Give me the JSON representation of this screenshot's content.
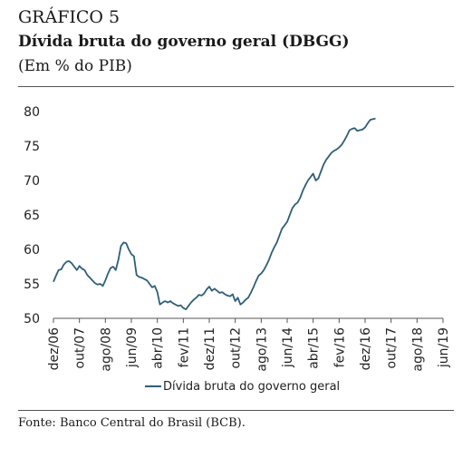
{
  "header": {
    "figure_label": "GRÁFICO 5",
    "title": "Dívida bruta do governo geral (DBGG)",
    "subtitle": "(Em % do PIB)"
  },
  "footer": {
    "source": "Fonte: Banco Central do Brasil (BCB)."
  },
  "colors": {
    "series": "#2e5f79",
    "axis": "#555555"
  },
  "chart_data": {
    "type": "line",
    "ylim": [
      50,
      80
    ],
    "yticks": [
      50,
      55,
      60,
      65,
      70,
      75,
      80
    ],
    "xlim": [
      0,
      150
    ],
    "xticks": [
      {
        "label": "dez/06",
        "x": 0
      },
      {
        "label": "out/07",
        "x": 10
      },
      {
        "label": "ago/08",
        "x": 20
      },
      {
        "label": "jun/09",
        "x": 30
      },
      {
        "label": "abr/10",
        "x": 40
      },
      {
        "label": "fev/11",
        "x": 50
      },
      {
        "label": "dez/11",
        "x": 60
      },
      {
        "label": "out/12",
        "x": 70
      },
      {
        "label": "ago/13",
        "x": 80
      },
      {
        "label": "jun/14",
        "x": 90
      },
      {
        "label": "abr/15",
        "x": 100
      },
      {
        "label": "fev/16",
        "x": 110
      },
      {
        "label": "dez/16",
        "x": 120
      },
      {
        "label": "out/17",
        "x": 130
      },
      {
        "label": "ago/18",
        "x": 140
      },
      {
        "label": "jun/19",
        "x": 150
      }
    ],
    "legend": "bottom-center",
    "series": [
      {
        "name": "Dívida bruta do governo geral",
        "points": [
          [
            0,
            55.3
          ],
          [
            1,
            56.2
          ],
          [
            2,
            57.0
          ],
          [
            3,
            57.1
          ],
          [
            4,
            57.8
          ],
          [
            5,
            58.2
          ],
          [
            6,
            58.3
          ],
          [
            7,
            58.0
          ],
          [
            8,
            57.5
          ],
          [
            9,
            57.0
          ],
          [
            10,
            57.6
          ],
          [
            11,
            57.2
          ],
          [
            12,
            57.0
          ],
          [
            13,
            56.3
          ],
          [
            14,
            55.9
          ],
          [
            15,
            55.5
          ],
          [
            16,
            55.1
          ],
          [
            17,
            54.9
          ],
          [
            18,
            55.0
          ],
          [
            19,
            54.7
          ],
          [
            20,
            55.5
          ],
          [
            21,
            56.5
          ],
          [
            22,
            57.3
          ],
          [
            23,
            57.5
          ],
          [
            24,
            57.0
          ],
          [
            25,
            58.5
          ],
          [
            26,
            60.5
          ],
          [
            27,
            61.0
          ],
          [
            28,
            60.9
          ],
          [
            29,
            60.0
          ],
          [
            30,
            59.3
          ],
          [
            31,
            59.0
          ],
          [
            32,
            56.3
          ],
          [
            33,
            56.0
          ],
          [
            34,
            55.9
          ],
          [
            35,
            55.7
          ],
          [
            36,
            55.5
          ],
          [
            37,
            55.0
          ],
          [
            38,
            54.5
          ],
          [
            39,
            54.7
          ],
          [
            40,
            53.8
          ],
          [
            41,
            52.0
          ],
          [
            42,
            52.3
          ],
          [
            43,
            52.5
          ],
          [
            44,
            52.3
          ],
          [
            45,
            52.5
          ],
          [
            46,
            52.2
          ],
          [
            47,
            52.0
          ],
          [
            48,
            51.8
          ],
          [
            49,
            51.9
          ],
          [
            50,
            51.5
          ],
          [
            51,
            51.3
          ],
          [
            52,
            51.8
          ],
          [
            53,
            52.3
          ],
          [
            54,
            52.7
          ],
          [
            55,
            53.0
          ],
          [
            56,
            53.4
          ],
          [
            57,
            53.3
          ],
          [
            58,
            53.6
          ],
          [
            59,
            54.2
          ],
          [
            60,
            54.6
          ],
          [
            61,
            54.0
          ],
          [
            62,
            54.3
          ],
          [
            63,
            54.0
          ],
          [
            64,
            53.7
          ],
          [
            65,
            53.8
          ],
          [
            66,
            53.5
          ],
          [
            67,
            53.3
          ],
          [
            68,
            53.2
          ],
          [
            69,
            53.5
          ],
          [
            70,
            52.5
          ],
          [
            71,
            53.0
          ],
          [
            72,
            52.0
          ],
          [
            73,
            52.3
          ],
          [
            74,
            52.7
          ],
          [
            75,
            53.0
          ],
          [
            76,
            53.7
          ],
          [
            77,
            54.5
          ],
          [
            78,
            55.4
          ],
          [
            79,
            56.2
          ],
          [
            80,
            56.5
          ],
          [
            81,
            57.0
          ],
          [
            82,
            57.7
          ],
          [
            83,
            58.5
          ],
          [
            84,
            59.5
          ],
          [
            85,
            60.3
          ],
          [
            86,
            61.0
          ],
          [
            87,
            62.0
          ],
          [
            88,
            63.0
          ],
          [
            89,
            63.5
          ],
          [
            90,
            64.0
          ],
          [
            91,
            65.0
          ],
          [
            92,
            66.0
          ],
          [
            93,
            66.5
          ],
          [
            94,
            66.8
          ],
          [
            95,
            67.5
          ],
          [
            96,
            68.5
          ],
          [
            97,
            69.3
          ],
          [
            98,
            70.0
          ],
          [
            99,
            70.5
          ],
          [
            100,
            71.0
          ],
          [
            101,
            70.0
          ],
          [
            102,
            70.3
          ],
          [
            103,
            71.3
          ],
          [
            104,
            72.3
          ],
          [
            105,
            73.0
          ],
          [
            106,
            73.5
          ],
          [
            107,
            74.0
          ],
          [
            108,
            74.3
          ],
          [
            109,
            74.5
          ],
          [
            110,
            74.8
          ],
          [
            111,
            75.2
          ],
          [
            112,
            75.8
          ],
          [
            113,
            76.5
          ],
          [
            114,
            77.3
          ],
          [
            115,
            77.5
          ],
          [
            116,
            77.6
          ],
          [
            117,
            77.2
          ],
          [
            118,
            77.3
          ],
          [
            119,
            77.4
          ],
          [
            120,
            77.7
          ],
          [
            121,
            78.3
          ],
          [
            122,
            78.8
          ],
          [
            123,
            78.9
          ],
          [
            124,
            79.0
          ]
        ]
      }
    ]
  }
}
